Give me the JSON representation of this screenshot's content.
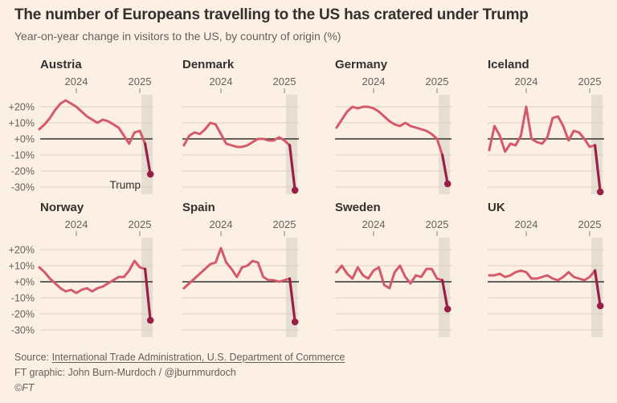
{
  "header": {
    "title": "The number of Europeans travelling to the US has cratered under Trump",
    "subtitle": "Year-on-year change in visitors to the US, by country of origin (%)"
  },
  "axis": {
    "years": [
      "2024",
      "2025"
    ],
    "yticks": [
      20,
      10,
      0,
      -10,
      -20,
      -30
    ],
    "ytick_labels": [
      "+20%",
      "+10%",
      "+0%",
      "-10%",
      "-20%",
      "-30%"
    ],
    "ylim": [
      -35,
      27
    ],
    "grid": true
  },
  "colors": {
    "background": "#FBF0E3",
    "line": "#D4596B",
    "plunge": "#9A1F46",
    "grid": "#D8CEC1",
    "zero_line": "#33302E",
    "band": "#E6DED3",
    "text": "#33302E",
    "muted": "#66605C"
  },
  "chart_data": [
    {
      "type": "line",
      "country": "Austria",
      "unit": "%",
      "freq": "monthly",
      "x_start": "2023-06",
      "x_end": "2025-03",
      "show_y_axis": true,
      "annotation": "Trump",
      "values": [
        6,
        9,
        13,
        18,
        22,
        24,
        22,
        20,
        17,
        14,
        12,
        10,
        12,
        11,
        9,
        7,
        2,
        -3,
        4,
        5,
        -3,
        -22
      ]
    },
    {
      "type": "line",
      "country": "Denmark",
      "unit": "%",
      "freq": "monthly",
      "x_start": "2023-06",
      "x_end": "2025-03",
      "show_y_axis": false,
      "annotation": "",
      "values": [
        -4,
        2,
        4,
        3,
        6,
        10,
        9,
        3,
        -3,
        -4,
        -5,
        -5,
        -4,
        -2,
        0,
        0,
        -1,
        -1,
        1,
        -1,
        -4,
        -32
      ]
    },
    {
      "type": "line",
      "country": "Germany",
      "unit": "%",
      "freq": "monthly",
      "x_start": "2023-06",
      "x_end": "2025-03",
      "show_y_axis": false,
      "annotation": "",
      "values": [
        7,
        12,
        17,
        20,
        19,
        20,
        20,
        19,
        17,
        14,
        11,
        9,
        8,
        10,
        8,
        7,
        6,
        5,
        3,
        0,
        -10,
        -28
      ]
    },
    {
      "type": "line",
      "country": "Iceland",
      "unit": "%",
      "freq": "monthly",
      "x_start": "2023-06",
      "x_end": "2025-03",
      "show_y_axis": false,
      "annotation": "",
      "values": [
        -7,
        8,
        2,
        -8,
        -3,
        -4,
        2,
        20,
        0,
        -2,
        -3,
        1,
        13,
        14,
        8,
        -1,
        5,
        4,
        0,
        -5,
        -4,
        -33
      ]
    },
    {
      "type": "line",
      "country": "Norway",
      "unit": "%",
      "freq": "monthly",
      "x_start": "2023-06",
      "x_end": "2025-03",
      "show_y_axis": true,
      "annotation": "",
      "values": [
        9,
        6,
        2,
        -1,
        -4,
        -6,
        -5,
        -7,
        -5,
        -4,
        -6,
        -4,
        -3,
        -1,
        1,
        3,
        3,
        7,
        13,
        9,
        8,
        -24
      ]
    },
    {
      "type": "line",
      "country": "Spain",
      "unit": "%",
      "freq": "monthly",
      "x_start": "2023-06",
      "x_end": "2025-03",
      "show_y_axis": false,
      "annotation": "",
      "values": [
        -4,
        -1,
        2,
        5,
        8,
        11,
        12,
        21,
        12,
        8,
        3,
        9,
        10,
        13,
        12,
        3,
        1,
        1,
        0,
        1,
        2,
        -25
      ]
    },
    {
      "type": "line",
      "country": "Sweden",
      "unit": "%",
      "freq": "monthly",
      "x_start": "2023-06",
      "x_end": "2025-03",
      "show_y_axis": false,
      "annotation": "",
      "values": [
        6,
        10,
        5,
        2,
        9,
        4,
        2,
        7,
        9,
        -2,
        -4,
        6,
        10,
        3,
        -1,
        4,
        3,
        8,
        8,
        2,
        1,
        -17
      ]
    },
    {
      "type": "line",
      "country": "UK",
      "unit": "%",
      "freq": "monthly",
      "x_start": "2023-06",
      "x_end": "2025-03",
      "show_y_axis": false,
      "annotation": "",
      "values": [
        4,
        4,
        5,
        3,
        4,
        6,
        7,
        6,
        2,
        2,
        3,
        4,
        2,
        1,
        3,
        6,
        3,
        2,
        1,
        3,
        7,
        -15
      ]
    }
  ],
  "footer": {
    "source_prefix": "Source: ",
    "source_link": "International Trade Administration, U.S. Department of Commerce",
    "credit": "FT graphic: John Burn-Murdoch / @jburnmurdoch",
    "copyright": "©FT"
  }
}
